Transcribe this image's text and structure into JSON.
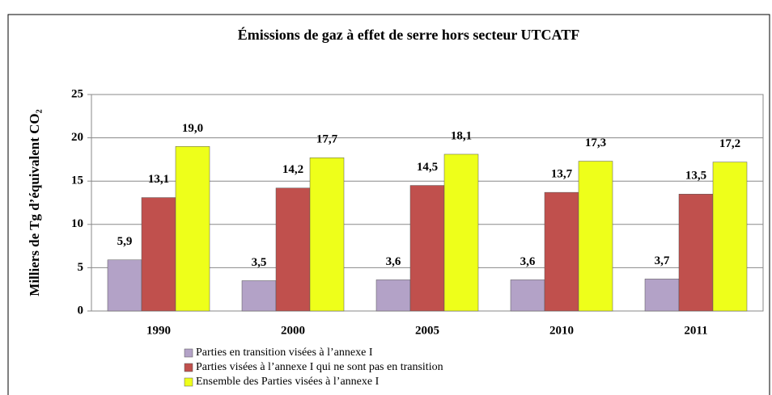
{
  "chart_data": {
    "type": "bar",
    "title": "Émissions de gaz à effet de serre hors secteur UTCATF",
    "y_label": "Milliers de Tg d’équivalent CO₂",
    "categories": [
      "1990",
      "2000",
      "2005",
      "2010",
      "2011"
    ],
    "series": [
      {
        "name": "Parties en transition visées à l’annexe I",
        "color": "#b3a2c7",
        "values": [
          5.9,
          3.5,
          3.6,
          3.6,
          3.7
        ],
        "value_labels": [
          "5,9",
          "3,5",
          "3,6",
          "3,6",
          "3,7"
        ]
      },
      {
        "name": "Parties visées à l’annexe I qui ne sont pas en transition",
        "color": "#c0504d",
        "values": [
          13.1,
          14.2,
          14.5,
          13.7,
          13.5
        ],
        "value_labels": [
          "13,1",
          "14,2",
          "14,5",
          "13,7",
          "13,5"
        ]
      },
      {
        "name": "Ensemble des Parties visées à l’annexe I",
        "color": "#eeff1a",
        "values": [
          19.0,
          17.7,
          18.1,
          17.3,
          17.2
        ],
        "value_labels": [
          "19,0",
          "17,7",
          "18,1",
          "17,3",
          "17,2"
        ]
      }
    ],
    "ylim": [
      0,
      25
    ],
    "yticks": [
      0,
      5,
      10,
      15,
      20,
      25
    ],
    "grid": true,
    "legend": "bottom"
  }
}
